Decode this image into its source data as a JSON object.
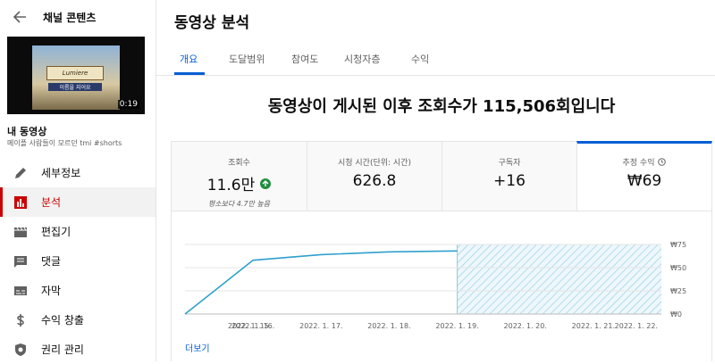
{
  "sidebar": {
    "header": "채널 콘텐츠",
    "thumbnail_text": [
      "Lumiere",
      "이름을 지어요"
    ],
    "duration": "0:19",
    "video_label": "내 동영상",
    "video_title": "메이플 사람들이 모르던 tmi #shorts",
    "nav": [
      "세부정보",
      "분석",
      "편집기",
      "댓글",
      "자막",
      "수익 창출",
      "권리 관리"
    ]
  },
  "main": {
    "title": "동영상 분석",
    "tabs": [
      "개요",
      "도달범위",
      "참여도",
      "시청자층",
      "수익"
    ],
    "headline": "동영상이 게시된 이후 조회수가 115,506회입니다",
    "cards": [
      {
        "label": "조회수",
        "value": "11.6만",
        "note": "평소보다 4.7만 높음"
      },
      {
        "label": "시청 시간(단위: 시간)",
        "value": "626.8"
      },
      {
        "label": "구독자",
        "value": "+16"
      },
      {
        "label": "추정 수익",
        "value": "₩69"
      }
    ],
    "more": "더보기"
  },
  "chart_data": {
    "type": "line",
    "categories": [
      "2022. 1. 15.",
      "2022. 1. 16.",
      "2022. 1. 17.",
      "2022. 1. 18.",
      "2022. 1. 19.",
      "2022. 1. 20.",
      "2022. 1. 21.",
      "2022. 1. 22."
    ],
    "series": [
      {
        "name": "추정 수익",
        "color": "#2fa0cc",
        "values": [
          0,
          58,
          64,
          67,
          68,
          null,
          null,
          null
        ]
      }
    ],
    "ylim": [
      0,
      75
    ],
    "yticks": [
      {
        "value": 0,
        "label": "₩0"
      },
      {
        "value": 25,
        "label": "₩25"
      },
      {
        "value": 50,
        "label": "₩50"
      },
      {
        "value": 75,
        "label": "₩75"
      }
    ],
    "grid": true
  }
}
